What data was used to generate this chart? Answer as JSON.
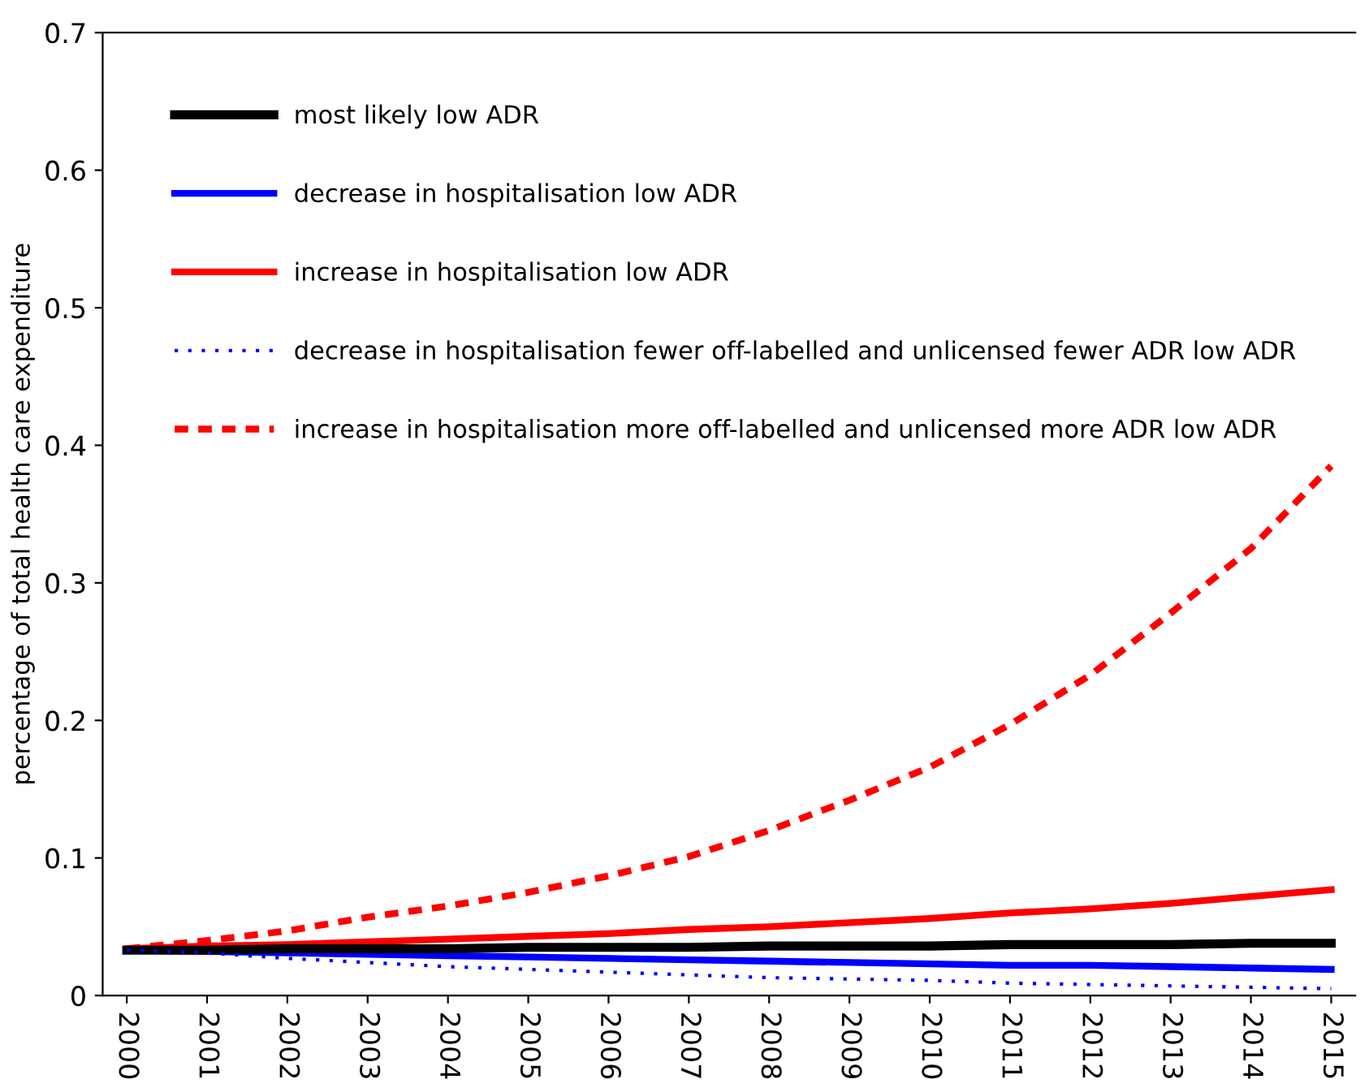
{
  "chart_data": {
    "type": "line",
    "ylabel": "percentage of total health care expenditure",
    "categories": [
      "2000",
      "2001",
      "2002",
      "2003",
      "2004",
      "2005",
      "2006",
      "2007",
      "2008",
      "2009",
      "2010",
      "2011",
      "2012",
      "2013",
      "2014",
      "2015"
    ],
    "ylim": [
      0,
      0.7
    ],
    "yticks": [
      {
        "value": 0,
        "label": "0"
      },
      0.1,
      0.2,
      0.3,
      0.4,
      0.5,
      0.6,
      0.7
    ],
    "legend": "top left",
    "grid": false,
    "marker": "none",
    "series": [
      {
        "name": "most likely low ADR",
        "color": "#000000",
        "line_style": "solid",
        "values": [
          0.033,
          0.033,
          0.034,
          0.034,
          0.034,
          0.035,
          0.035,
          0.035,
          0.036,
          0.036,
          0.036,
          0.037,
          0.037,
          0.037,
          0.038,
          0.038
        ]
      },
      {
        "name": "decrease in hospitalisation low ADR",
        "color": "#0000ff",
        "line_style": "solid",
        "values": [
          0.033,
          0.032,
          0.031,
          0.03,
          0.029,
          0.028,
          0.027,
          0.026,
          0.025,
          0.024,
          0.023,
          0.022,
          0.022,
          0.021,
          0.02,
          0.019
        ]
      },
      {
        "name": "increase in hospitalisation low ADR",
        "color": "#ff0000",
        "line_style": "solid",
        "values": [
          0.034,
          0.036,
          0.037,
          0.039,
          0.041,
          0.043,
          0.045,
          0.048,
          0.05,
          0.053,
          0.056,
          0.06,
          0.063,
          0.067,
          0.072,
          0.077
        ]
      },
      {
        "name": "decrease in hospitalisation fewer off-labelled and unlicensed fewer ADR low ADR",
        "color": "#0000ff",
        "line_style": "dotted",
        "values": [
          0.033,
          0.031,
          0.027,
          0.024,
          0.021,
          0.019,
          0.017,
          0.015,
          0.013,
          0.012,
          0.011,
          0.009,
          0.008,
          0.007,
          0.006,
          0.005
        ]
      },
      {
        "name": "increase in hospitalisation more off-labelled and unlicensed more ADR low ADR",
        "color": "#ff0000",
        "line_style": "dashed",
        "values": [
          0.034,
          0.04,
          0.047,
          0.057,
          0.065,
          0.075,
          0.087,
          0.101,
          0.12,
          0.142,
          0.166,
          0.197,
          0.233,
          0.278,
          0.325,
          0.385
        ]
      }
    ]
  }
}
